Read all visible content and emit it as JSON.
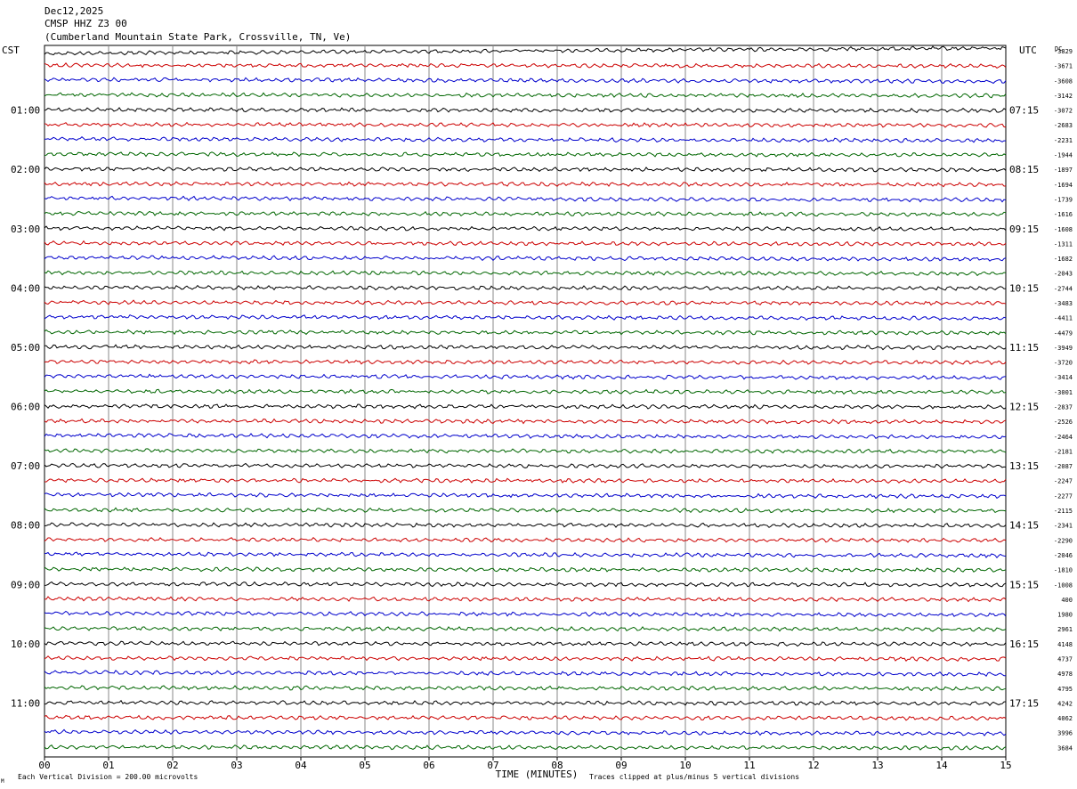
{
  "header": {
    "date": "Dec12,2025",
    "station": "CMSP HHZ Z3 00",
    "location": "(Cumberland Mountain State Park, Crossville, TN, Ve)"
  },
  "left_axis_label": "CST",
  "right_axis_label": "UTC",
  "offset_header": "DC",
  "footer": {
    "scale_note": "Each Vertical Division =  200.00 microvolts",
    "clip_note": "Traces clipped at plus/minus 5 vertical divisions",
    "corner_mark": "M"
  },
  "colors": [
    "#000000",
    "#cc0000",
    "#0000cc",
    "#006600"
  ],
  "chart_data": {
    "type": "line",
    "title": "CMSP HHZ Z3 00",
    "xlabel": "TIME (MINUTES)",
    "xlim": [
      0,
      15
    ],
    "x_ticks": [
      "00",
      "01",
      "02",
      "03",
      "04",
      "05",
      "06",
      "07",
      "08",
      "09",
      "10",
      "11",
      "12",
      "13",
      "14",
      "15"
    ],
    "rows": 48,
    "grid": true,
    "cst_hour_labels": [
      "01:00",
      "02:00",
      "03:00",
      "04:00",
      "05:00",
      "06:00",
      "07:00",
      "08:00",
      "09:00",
      "10:00",
      "11:00"
    ],
    "utc_hour_labels": [
      "07:15",
      "08:15",
      "09:15",
      "10:15",
      "11:15",
      "12:15",
      "13:15",
      "14:15",
      "15:15",
      "16:15",
      "17:15"
    ],
    "dc_offsets": [
      "-3829",
      "-3671",
      "-3608",
      "-3142",
      "-3072",
      "-2683",
      "-2231",
      "-1944",
      "-1897",
      "-1694",
      "-1739",
      "-1616",
      "-1608",
      "-1311",
      "-1682",
      "-2043",
      "-2744",
      "-3483",
      "-4411",
      "-4479",
      "-3949",
      "-3720",
      "-3414",
      "-3001",
      "-2837",
      "-2526",
      "-2464",
      "-2181",
      "-2087",
      "-2247",
      "-2277",
      "-2115",
      "-2341",
      "-2290",
      "-2046",
      "-1810",
      "-1008",
      "400",
      "1980",
      "2961",
      "4148",
      "4737",
      "4978",
      "4795",
      "4242",
      "4062",
      "3996",
      "3684"
    ]
  }
}
